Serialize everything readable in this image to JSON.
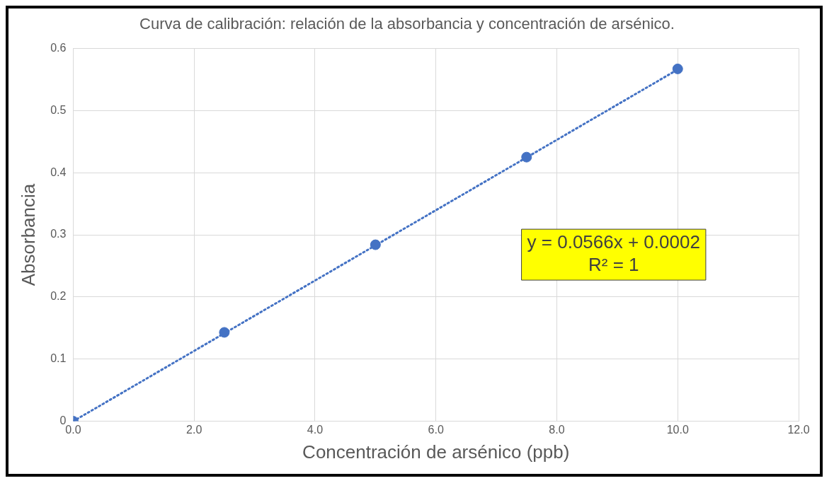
{
  "chart_data": {
    "type": "scatter",
    "title": "Curva de calibración: relación de la absorbancia y concentración de arsénico.",
    "xlabel": "Concentración de arsénico (ppb)",
    "ylabel": "Absorbancia",
    "x": [
      0,
      2.5,
      5,
      7.5,
      10
    ],
    "series": [
      {
        "type": "scatter",
        "color": "#4472c4",
        "values": [
          0,
          0.143,
          0.284,
          0.425,
          0.567
        ],
        "marker": "circle"
      },
      {
        "type": "line",
        "color": "#4472c4",
        "x": [
          0,
          10
        ],
        "values": [
          0,
          0.566
        ],
        "line_style": "dotted",
        "marker": "none"
      }
    ],
    "xlim": [
      0,
      12
    ],
    "xticks": [
      {
        "value": 0,
        "label": "0.0"
      },
      {
        "value": 2,
        "label": "2.0"
      },
      {
        "value": 4,
        "label": "4.0"
      },
      {
        "value": 6,
        "label": "6.0"
      },
      {
        "value": 8,
        "label": "8.0"
      },
      {
        "value": 10,
        "label": "10.0"
      },
      {
        "value": 12,
        "label": "12.0"
      }
    ],
    "ylim": [
      0,
      0.6
    ],
    "yticks": [
      0,
      0.1,
      0.2,
      0.3,
      0.4,
      0.5,
      0.6
    ],
    "grid": true,
    "legend": false,
    "annotations": [
      "y = 0.0566x + 0.0002",
      "R² = 1"
    ]
  }
}
